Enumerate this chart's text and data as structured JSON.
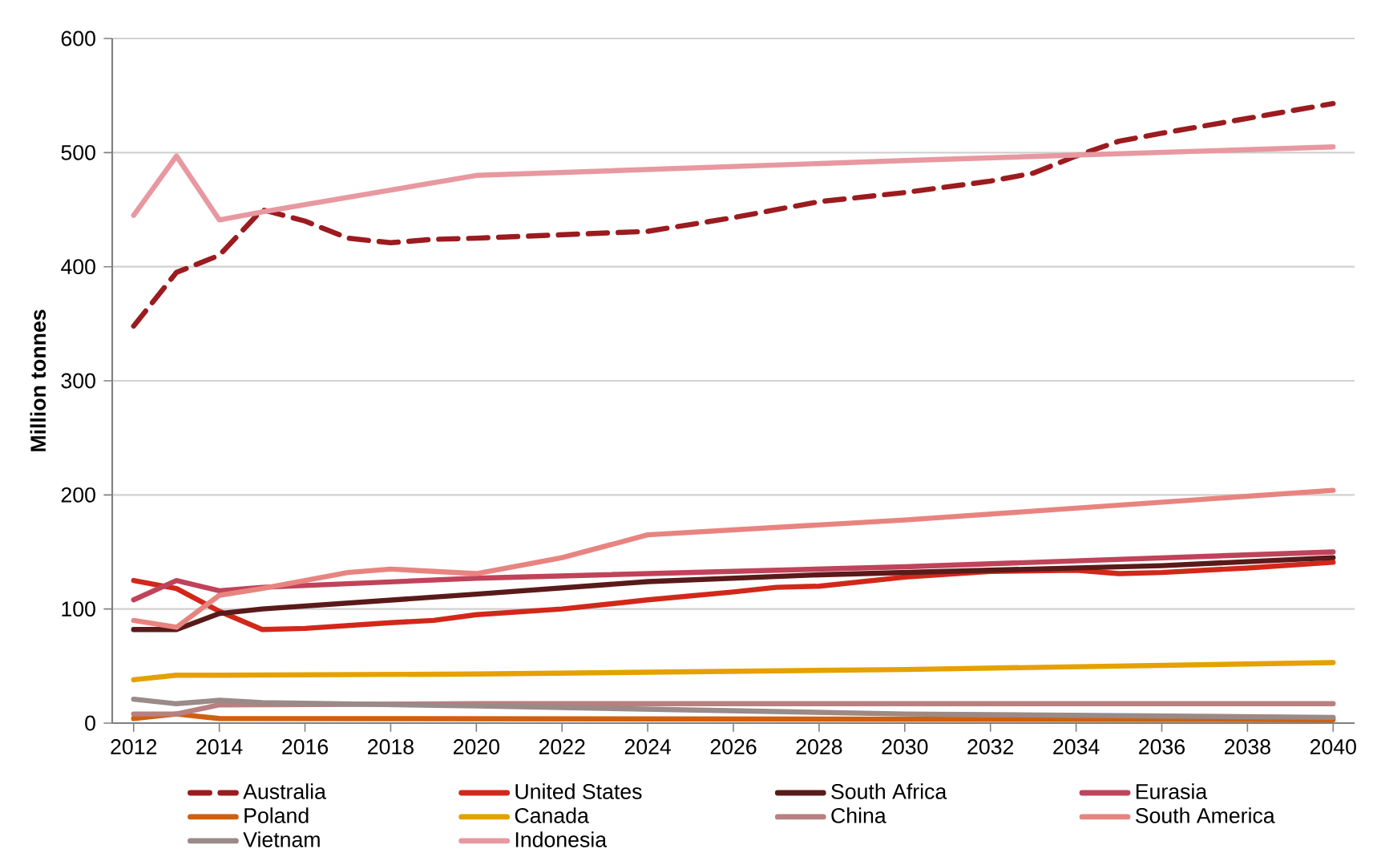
{
  "chart_data": {
    "type": "line",
    "ylabel": "Million tonnes",
    "xlim": [
      2011.5,
      2040.5
    ],
    "xticks": [
      2012,
      2014,
      2016,
      2018,
      2020,
      2022,
      2024,
      2026,
      2028,
      2030,
      2032,
      2034,
      2036,
      2038,
      2040
    ],
    "ylim": [
      0,
      600
    ],
    "yticks": [
      0,
      100,
      200,
      300,
      400,
      500,
      600
    ],
    "grid": "y",
    "legend": "bottom",
    "marker": "none",
    "series": [
      {
        "name": "Australia",
        "color": "#9b1b1f",
        "line_style": "dashed",
        "x": [
          2012,
          2013,
          2014,
          2015,
          2016,
          2017,
          2018,
          2019,
          2020,
          2022,
          2024,
          2026,
          2028,
          2030,
          2032,
          2033,
          2034,
          2035,
          2036,
          2038,
          2040
        ],
        "values": [
          348,
          395,
          410,
          450,
          440,
          425,
          421,
          424,
          425,
          428,
          431,
          443,
          457,
          465,
          475,
          482,
          497,
          510,
          517,
          530,
          543
        ]
      },
      {
        "name": "United States",
        "color": "#d2281a",
        "x": [
          2012,
          2013,
          2014,
          2015,
          2016,
          2018,
          2019,
          2020,
          2022,
          2024,
          2026,
          2027,
          2028,
          2030,
          2032,
          2034,
          2035,
          2036,
          2038,
          2040
        ],
        "values": [
          125,
          118,
          98,
          82,
          83,
          88,
          90,
          95,
          100,
          108,
          115,
          119,
          120,
          128,
          133,
          134,
          131,
          132,
          136,
          141
        ]
      },
      {
        "name": "South Africa",
        "color": "#5a1a1a",
        "x": [
          2012,
          2013,
          2014,
          2015,
          2020,
          2024,
          2028,
          2032,
          2036,
          2040
        ],
        "values": [
          82,
          82,
          96,
          100,
          113,
          124,
          130,
          134,
          138,
          145
        ]
      },
      {
        "name": "Eurasia",
        "color": "#c0435a",
        "x": [
          2012,
          2013,
          2014,
          2015,
          2020,
          2030,
          2040
        ],
        "values": [
          108,
          125,
          116,
          119,
          127,
          137,
          150
        ]
      },
      {
        "name": "Poland",
        "color": "#d0600f",
        "x": [
          2012,
          2013,
          2014,
          2040
        ],
        "values": [
          4,
          8,
          4,
          3
        ]
      },
      {
        "name": "Canada",
        "color": "#e4a100",
        "x": [
          2012,
          2013,
          2014,
          2020,
          2030,
          2040
        ],
        "values": [
          38,
          42,
          42,
          43,
          47,
          53
        ]
      },
      {
        "name": "China",
        "color": "#b88080",
        "x": [
          2012,
          2013,
          2014,
          2020,
          2040
        ],
        "values": [
          8,
          8,
          16,
          17,
          17
        ]
      },
      {
        "name": "South America",
        "color": "#e88480",
        "x": [
          2012,
          2013,
          2014,
          2015,
          2017,
          2018,
          2020,
          2022,
          2023,
          2024,
          2030,
          2040
        ],
        "values": [
          90,
          84,
          112,
          118,
          132,
          135,
          131,
          145,
          155,
          165,
          178,
          204
        ]
      },
      {
        "name": "Vietnam",
        "color": "#9a8a88",
        "x": [
          2012,
          2013,
          2014,
          2015,
          2020,
          2030,
          2040
        ],
        "values": [
          21,
          17,
          20,
          18,
          15,
          8,
          5
        ]
      },
      {
        "name": "Indonesia",
        "color": "#e898a0",
        "x": [
          2012,
          2013,
          2014,
          2015,
          2020,
          2030,
          2040
        ],
        "values": [
          445,
          497,
          441,
          448,
          480,
          493,
          505
        ]
      }
    ]
  }
}
